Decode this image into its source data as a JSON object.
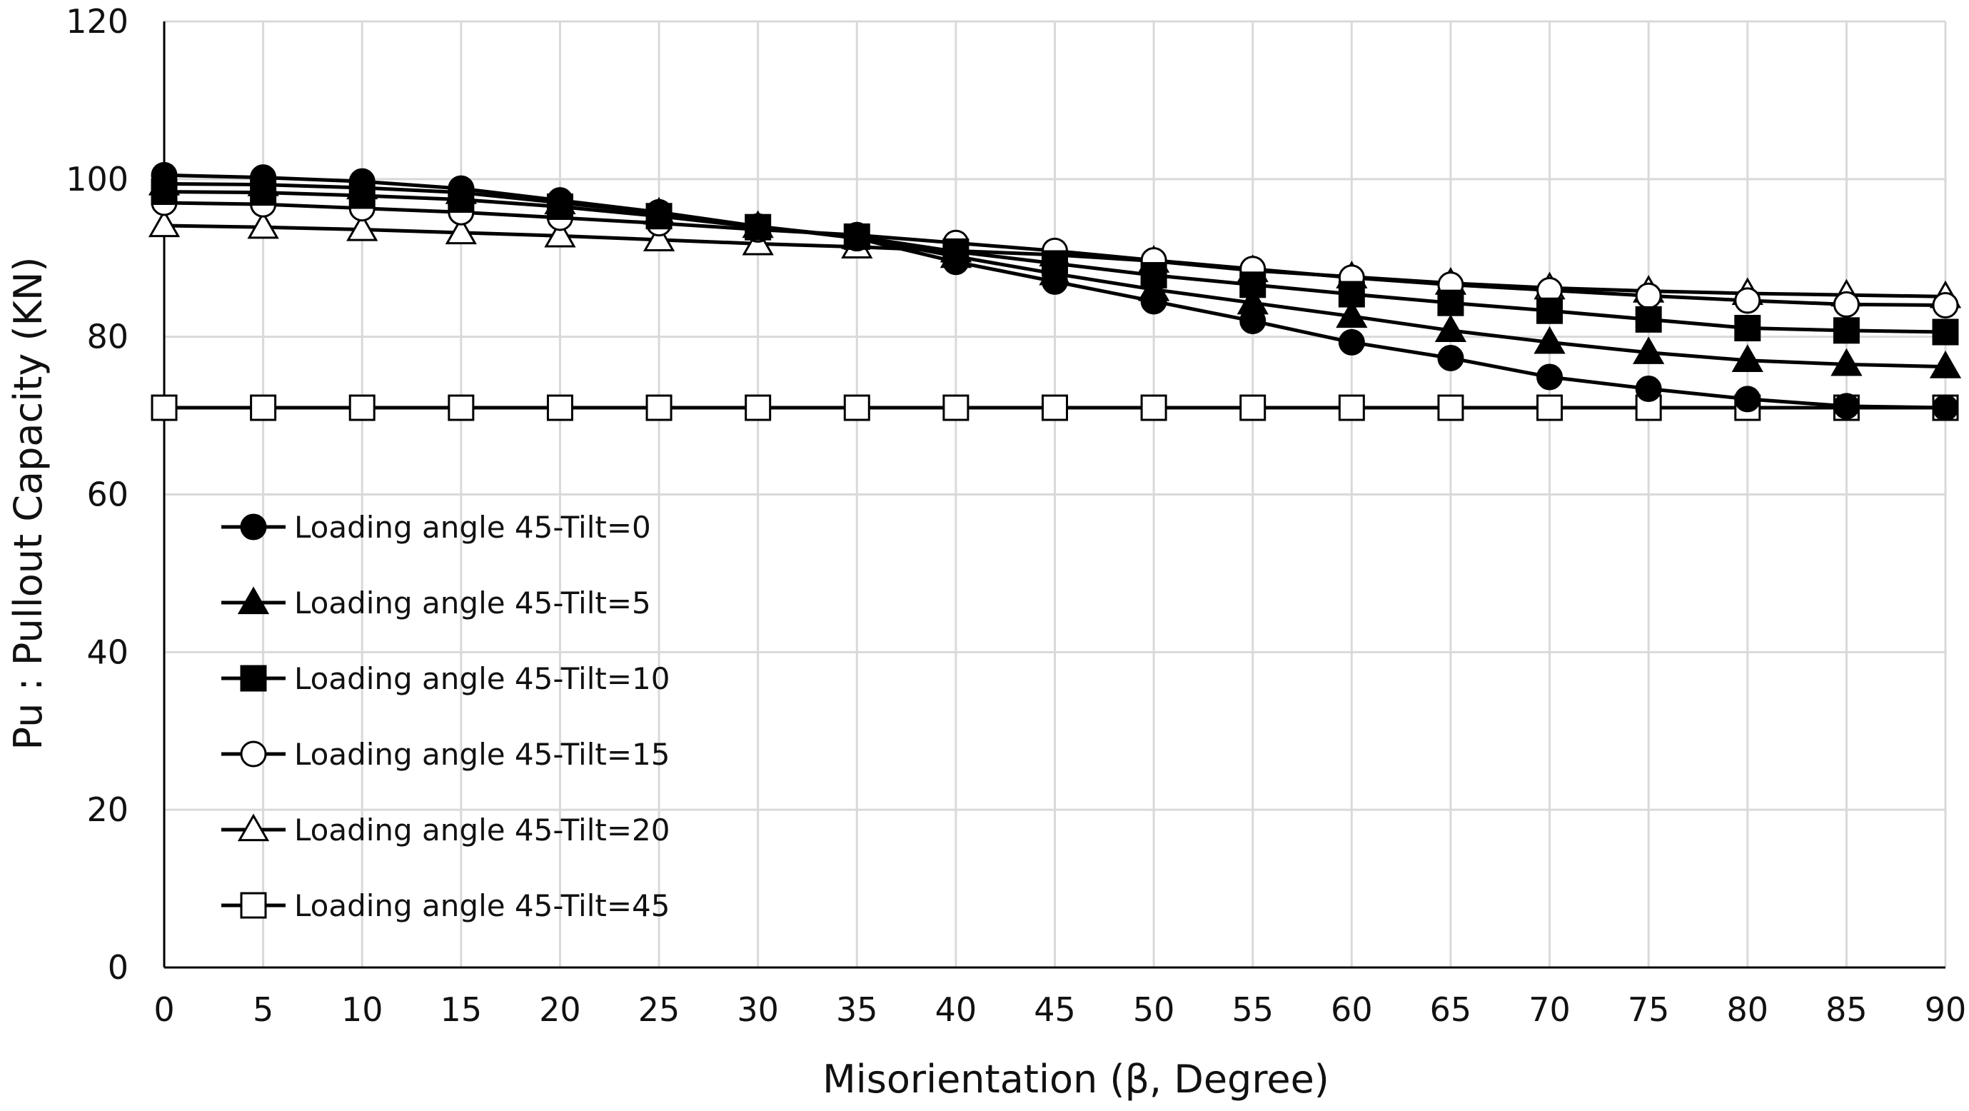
{
  "chart_data": {
    "type": "line",
    "title": "",
    "xlabel": "Misorientation (β, Degree)",
    "ylabel": "Pu : Pullout Capacity (KN)",
    "xlim": [
      0,
      90
    ],
    "ylim": [
      0,
      120
    ],
    "xticks": [
      0,
      5,
      10,
      15,
      20,
      25,
      30,
      35,
      40,
      45,
      50,
      55,
      60,
      65,
      70,
      75,
      80,
      85,
      90
    ],
    "yticks": [
      0,
      20,
      40,
      60,
      80,
      100,
      120
    ],
    "grid": true,
    "legend_position": "left-center",
    "x": [
      0,
      5,
      10,
      15,
      20,
      25,
      30,
      35,
      40,
      45,
      50,
      55,
      60,
      65,
      70,
      75,
      80,
      85,
      90
    ],
    "series": [
      {
        "name": "Loading angle 45-Tilt=0",
        "marker": "circle-filled",
        "values": [
          100.5,
          100.2,
          99.7,
          98.8,
          97.3,
          95.8,
          94.0,
          92.5,
          89.5,
          87.0,
          84.5,
          82.0,
          79.3,
          77.3,
          74.9,
          73.4,
          72.1,
          71.2,
          71.0
        ]
      },
      {
        "name": "Loading angle 45-Tilt=5",
        "marker": "triangle-filled",
        "values": [
          99.4,
          99.3,
          98.9,
          98.3,
          97.0,
          95.7,
          94.0,
          92.6,
          90.2,
          88.0,
          86.0,
          84.3,
          82.6,
          80.8,
          79.3,
          78.0,
          77.0,
          76.5,
          76.2
        ]
      },
      {
        "name": "Loading angle 45-Tilt=10",
        "marker": "square-filled",
        "values": [
          98.4,
          98.3,
          97.9,
          97.4,
          96.5,
          95.3,
          93.9,
          92.7,
          90.8,
          89.3,
          87.8,
          86.6,
          85.4,
          84.3,
          83.3,
          82.2,
          81.1,
          80.8,
          80.6
        ]
      },
      {
        "name": "Loading angle 45-Tilt=15",
        "marker": "circle-open",
        "values": [
          97.0,
          96.8,
          96.3,
          95.8,
          95.1,
          94.4,
          93.6,
          92.9,
          91.9,
          90.9,
          89.7,
          88.6,
          87.5,
          86.6,
          85.9,
          85.2,
          84.6,
          84.1,
          84.0
        ]
      },
      {
        "name": "Loading angle 45-Tilt=20",
        "marker": "triangle-open",
        "values": [
          94.1,
          93.9,
          93.6,
          93.2,
          92.8,
          92.3,
          91.8,
          91.4,
          90.9,
          90.4,
          89.6,
          88.4,
          87.6,
          86.8,
          86.2,
          85.8,
          85.5,
          85.3,
          85.1
        ]
      },
      {
        "name": "Loading angle 45-Tilt=45",
        "marker": "square-open",
        "values": [
          71.0,
          71.0,
          71.0,
          71.0,
          71.0,
          71.0,
          71.0,
          71.0,
          71.0,
          71.0,
          71.0,
          71.0,
          71.0,
          71.0,
          71.0,
          71.0,
          71.0,
          71.0,
          71.0
        ]
      }
    ]
  }
}
